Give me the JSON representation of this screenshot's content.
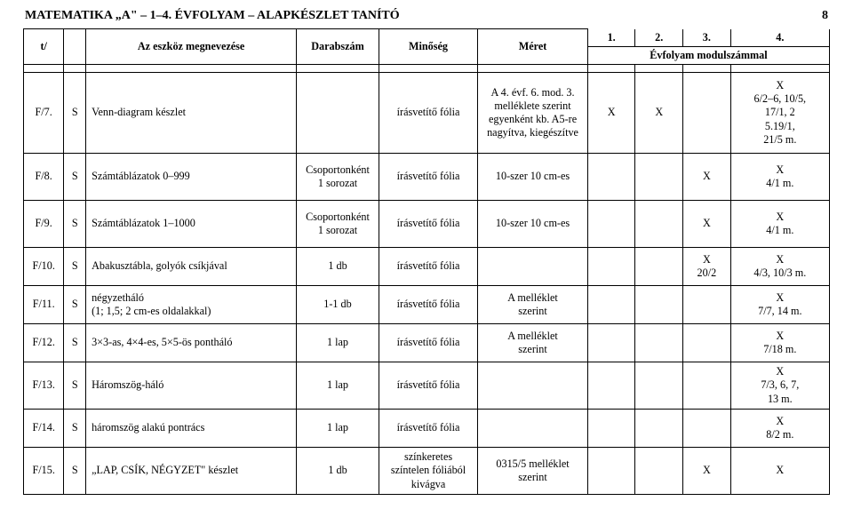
{
  "header": {
    "title": "MATEMATIKA „A\" – 1–4. ÉVFOLYAM – ALAPKÉSZLET TANÍTÓ",
    "page_number": "8"
  },
  "columns": {
    "id": "t/",
    "name": "Az eszköz megnevezése",
    "qty": "Darabszám",
    "quality": "Minőség",
    "size": "Méret",
    "y1": "1.",
    "y2": "2.",
    "y3": "3.",
    "y4": "4.",
    "evf": "Évfolyam modulszámmal"
  },
  "rows": {
    "r7": {
      "id": "F/7.",
      "s": "S",
      "name": "Venn-diagram készlet",
      "qty": "",
      "qual": "írásvetítő fólia",
      "size": "A 4. évf. 6. mod. 3. melléklete szerint egyenként kb. A5-re nagyítva, kiegészítve",
      "y1": "X",
      "y2": "X",
      "y3": "",
      "y4": "X\n6/2–6, 10/5,\n17/1, 2\n5.19/1,\n21/5 m."
    },
    "r8": {
      "id": "F/8.",
      "s": "S",
      "name": "Számtáblázatok 0–999",
      "qty": "Csoportonként\n1 sorozat",
      "qual": "írásvetítő fólia",
      "size": "10-szer 10 cm-es",
      "y1": "",
      "y2": "",
      "y3": "X",
      "y4": "X\n4/1 m."
    },
    "r9": {
      "id": "F/9.",
      "s": "S",
      "name": "Számtáblázatok 1–1000",
      "qty": "Csoportonként\n1 sorozat",
      "qual": "írásvetítő fólia",
      "size": "10-szer 10 cm-es",
      "y1": "",
      "y2": "",
      "y3": "X",
      "y4": "X\n4/1 m."
    },
    "r10": {
      "id": "F/10.",
      "s": "S",
      "name": "Abakusztábla, golyók csíkjával",
      "qty": "1 db",
      "qual": "írásvetítő fólia",
      "size": "",
      "y1": "",
      "y2": "",
      "y3": "X\n20/2",
      "y4": "X\n4/3, 10/3 m."
    },
    "r11": {
      "id": "F/11.",
      "s": "S",
      "name": "négyzetháló\n(1; 1,5; 2 cm-es oldalakkal)",
      "qty": "1-1 db",
      "qual": "írásvetítő fólia",
      "size": "A melléklet\nszerint",
      "y1": "",
      "y2": "",
      "y3": "",
      "y4": "X\n7/7, 14 m."
    },
    "r12": {
      "id": "F/12.",
      "s": "S",
      "name": "3×3-as, 4×4-es, 5×5-ös pontháló",
      "qty": "1 lap",
      "qual": "írásvetítő fólia",
      "size": "A melléklet\nszerint",
      "y1": "",
      "y2": "",
      "y3": "",
      "y4": "X\n7/18 m."
    },
    "r13": {
      "id": "F/13.",
      "s": "S",
      "name": "Háromszög-háló",
      "qty": "1 lap",
      "qual": "írásvetítő fólia",
      "size": "",
      "y1": "",
      "y2": "",
      "y3": "",
      "y4": "X\n7/3, 6, 7,\n13 m."
    },
    "r14": {
      "id": "F/14.",
      "s": "S",
      "name": "háromszög alakú pontrács",
      "qty": "1 lap",
      "qual": "írásvetítő fólia",
      "size": "",
      "y1": "",
      "y2": "",
      "y3": "",
      "y4": "X\n8/2 m."
    },
    "r15": {
      "id": "F/15.",
      "s": "S",
      "name": "„LAP, CSÍK, NÉGYZET\" készlet",
      "qty": "1 db",
      "qual": "színkeretes\nszíntelen fóliából\nkivágva",
      "size": "0315/5 melléklet\nszerint",
      "y1": "",
      "y2": "",
      "y3": "X",
      "y4": "X"
    }
  }
}
